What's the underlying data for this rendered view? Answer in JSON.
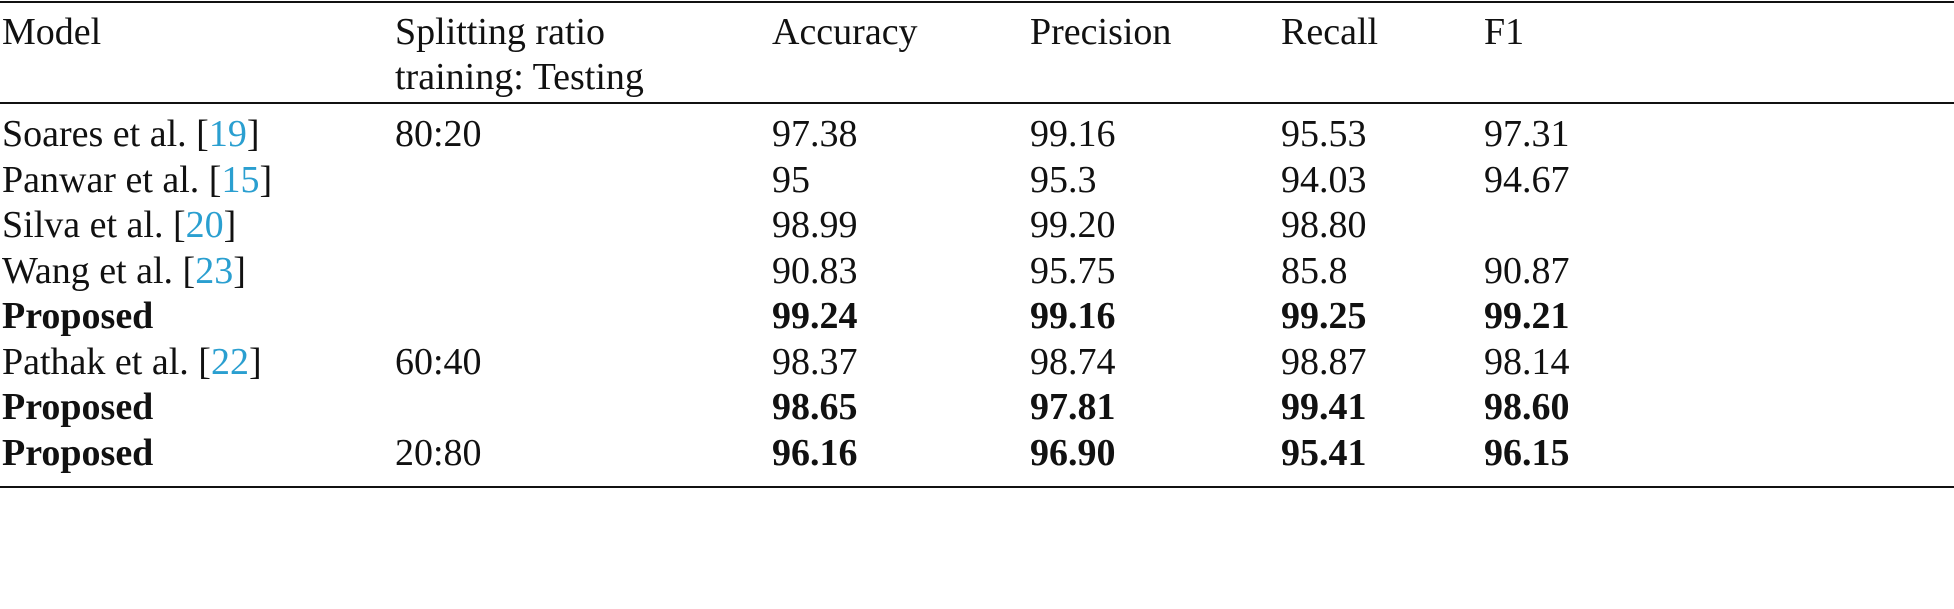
{
  "table": {
    "header": [
      "Model",
      "Splitting ratio\ntraining: Testing",
      "Accuracy",
      "Precision",
      "Recall",
      "F1"
    ],
    "rows": [
      {
        "model": [
          {
            "text": "Soares et al. ["
          },
          {
            "text": "19",
            "link": true
          },
          {
            "text": "]"
          }
        ],
        "cells": [
          "80:20",
          "97.38",
          "99.16",
          "95.53",
          "97.31"
        ],
        "bold": false
      },
      {
        "model": [
          {
            "text": "Panwar et al. ["
          },
          {
            "text": "15",
            "link": true
          },
          {
            "text": "]"
          }
        ],
        "cells": [
          null,
          "95",
          "95.3",
          "94.03",
          "94.67"
        ],
        "bold": false
      },
      {
        "model": [
          {
            "text": "Silva et al. ["
          },
          {
            "text": "20",
            "link": true
          },
          {
            "text": "]"
          }
        ],
        "cells": [
          null,
          "98.99",
          "99.20",
          "98.80",
          null
        ],
        "bold": false
      },
      {
        "model": [
          {
            "text": "Wang et al. ["
          },
          {
            "text": "23",
            "link": true
          },
          {
            "text": "]"
          }
        ],
        "cells": [
          null,
          "90.83",
          "95.75",
          "85.8",
          "90.87"
        ],
        "bold": false
      },
      {
        "model": [
          {
            "text": "Proposed"
          }
        ],
        "cells": [
          null,
          "99.24",
          "99.16",
          "99.25",
          "99.21"
        ],
        "bold": true
      },
      {
        "model": [
          {
            "text": "Pathak et al. ["
          },
          {
            "text": "22",
            "link": true
          },
          {
            "text": "]"
          }
        ],
        "cells": [
          "60:40",
          "98.37",
          "98.74",
          "98.87",
          "98.14"
        ],
        "bold": false
      },
      {
        "model": [
          {
            "text": "Proposed"
          }
        ],
        "cells": [
          null,
          "98.65",
          "97.81",
          "99.41",
          "98.60"
        ],
        "bold": true
      },
      {
        "model": [
          {
            "text": "Proposed"
          }
        ],
        "cells": [
          "20:80",
          "96.16",
          "96.90",
          "95.41",
          "96.15"
        ],
        "bold": true
      }
    ]
  }
}
